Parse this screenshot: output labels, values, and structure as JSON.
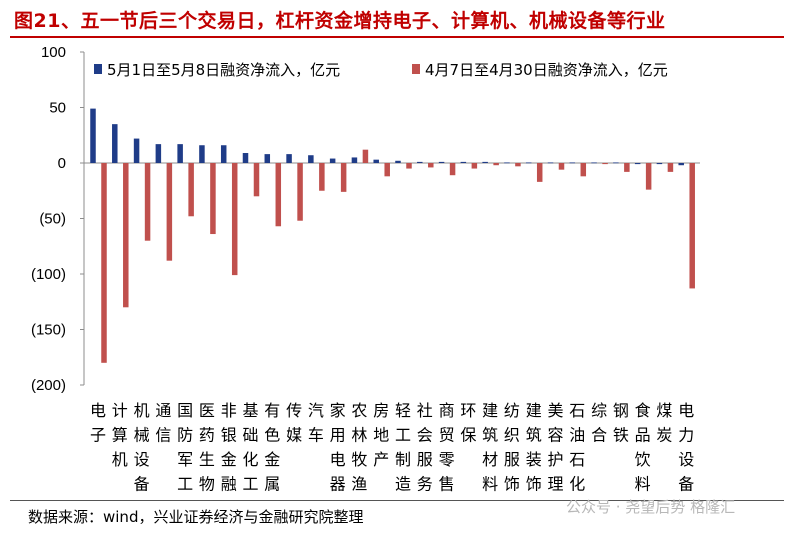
{
  "title": "图21、五一节后三个交易日，杠杆资金增持电子、计算机、机械设备等行业",
  "source": "数据来源：wind，兴业证券经济与金融研究院整理",
  "watermark": "公众号 · 尧望后势  格隆汇",
  "colors": {
    "series1": "#1f3c88",
    "series2": "#c0504d",
    "title": "#c00000"
  },
  "chart_data": {
    "type": "bar",
    "ylim": [
      -200,
      100
    ],
    "yticks": [
      100,
      50,
      0,
      -50,
      -100,
      -150,
      -200
    ],
    "ytick_labels": [
      "100",
      "50",
      "0",
      "(50)",
      "(100)",
      "(150)",
      "(200)"
    ],
    "legend_position": "top",
    "categories": [
      "电子",
      "计算机",
      "机械设备",
      "通信",
      "国防军工",
      "医药生物",
      "非银金融",
      "基础化工",
      "有色金属",
      "传媒",
      "汽车",
      "家用电器",
      "农林牧渔",
      "房地产",
      "轻工制造",
      "社会服务",
      "商贸零售",
      "环保",
      "建筑材料",
      "纺织服饰",
      "建筑装饰",
      "美容护理",
      "石油石化",
      "综合",
      "钢铁",
      "食品饮料",
      "煤炭",
      "电力设备"
    ],
    "series": [
      {
        "name": "5月1日至5月8日融资净流入，亿元",
        "values": [
          49,
          35,
          22,
          17,
          17,
          16,
          16,
          9,
          8,
          8,
          7,
          4,
          5,
          3,
          2,
          1,
          1,
          1,
          1,
          0.5,
          0.5,
          0.5,
          0.5,
          0.5,
          0.5,
          -1,
          -1,
          -2
        ]
      },
      {
        "name": "4月7日至4月30日融资净流入，亿元",
        "values": [
          -180,
          -130,
          -70,
          -88,
          -48,
          -64,
          -101,
          -30,
          -57,
          -52,
          -25,
          -26,
          12,
          -12,
          -5,
          -4,
          -11,
          -5,
          -2,
          -3,
          -17,
          -6,
          -12,
          -1,
          -8,
          -24,
          -8,
          -113
        ]
      }
    ]
  }
}
